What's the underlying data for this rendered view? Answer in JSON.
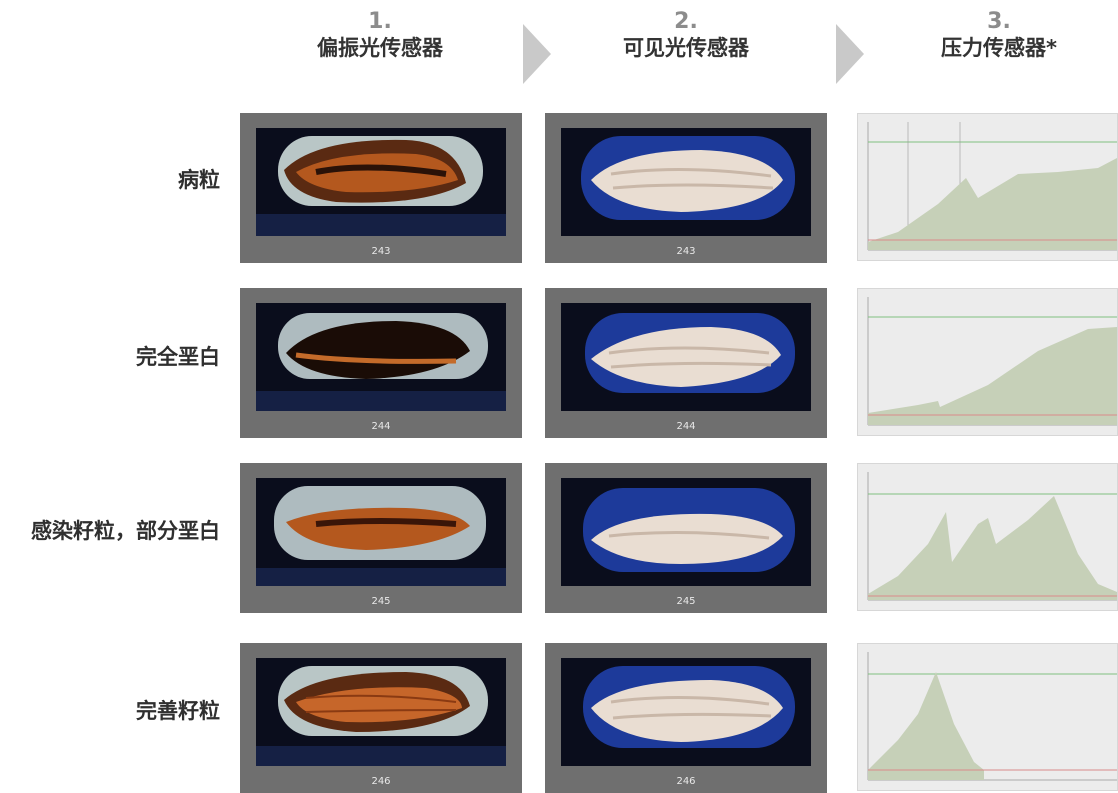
{
  "columns": [
    {
      "num": "1.",
      "title": "偏振光传感器"
    },
    {
      "num": "2.",
      "title": "可见光传感器"
    },
    {
      "num": "3.",
      "title": "压力传感器*"
    }
  ],
  "rows": [
    {
      "label": "病粒",
      "caption_polarized": "243",
      "caption_visible": "243"
    },
    {
      "label": "完全垩白",
      "caption_polarized": "244",
      "caption_visible": "244"
    },
    {
      "label": "感染籽粒，部分垩白",
      "caption_polarized": "245",
      "caption_visible": "245"
    },
    {
      "label": "完善籽粒",
      "caption_polarized": "246",
      "caption_visible": "246"
    }
  ],
  "colors": {
    "tile_frame": "#6f6f6f",
    "arrow": "#c9c9c9",
    "graph_fill": "#c6d0b8",
    "threshold_high": "#7fc07f",
    "threshold_low": "#d98a8a"
  }
}
